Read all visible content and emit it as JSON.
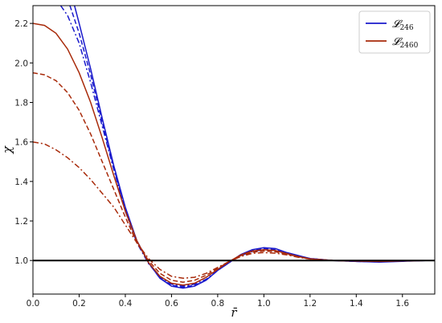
{
  "chart_data": {
    "type": "line",
    "xlabel": "r̄",
    "ylabel": "χ",
    "xlim": [
      0.0,
      1.74
    ],
    "ylim": [
      0.83,
      2.29
    ],
    "x_ticks": [
      "0.0",
      "0.2",
      "0.4",
      "0.6",
      "0.8",
      "1.0",
      "1.2",
      "1.4",
      "1.6"
    ],
    "y_ticks": [
      "1.0",
      "1.2",
      "1.4",
      "1.6",
      "1.8",
      "2.0",
      "2.2"
    ],
    "x_tick_values": [
      0.0,
      0.2,
      0.4,
      0.6,
      0.8,
      1.0,
      1.2,
      1.4,
      1.6
    ],
    "y_tick_values": [
      1.0,
      1.2,
      1.4,
      1.6,
      1.8,
      2.0,
      2.2
    ],
    "grid": false,
    "legend_position": "top-right",
    "legend": [
      {
        "label": "𝓛",
        "sub": "246",
        "color": "#1a1acc"
      },
      {
        "label": "𝓛",
        "sub": "2460",
        "color": "#a82a0a"
      }
    ],
    "reference_line": {
      "y": 1.0,
      "color": "#000000"
    },
    "series": [
      {
        "color": "#1a1acc",
        "dash": "solid",
        "points": [
          [
            0.18,
            2.29
          ],
          [
            0.2,
            2.2
          ],
          [
            0.25,
            1.97
          ],
          [
            0.3,
            1.72
          ],
          [
            0.35,
            1.48
          ],
          [
            0.4,
            1.27
          ],
          [
            0.45,
            1.1
          ],
          [
            0.5,
            0.99
          ],
          [
            0.55,
            0.91
          ],
          [
            0.6,
            0.87
          ],
          [
            0.65,
            0.86
          ],
          [
            0.7,
            0.87
          ],
          [
            0.75,
            0.9
          ],
          [
            0.8,
            0.95
          ],
          [
            0.85,
            0.99
          ],
          [
            0.9,
            1.03
          ],
          [
            0.95,
            1.055
          ],
          [
            1.0,
            1.065
          ],
          [
            1.05,
            1.06
          ],
          [
            1.1,
            1.04
          ],
          [
            1.15,
            1.025
          ],
          [
            1.2,
            1.01
          ],
          [
            1.3,
            1.0
          ],
          [
            1.4,
            0.995
          ],
          [
            1.5,
            0.992
          ],
          [
            1.6,
            0.996
          ],
          [
            1.7,
            1.0
          ]
        ]
      },
      {
        "color": "#1a1acc",
        "dash": "dashed",
        "points": [
          [
            0.16,
            2.29
          ],
          [
            0.2,
            2.15
          ],
          [
            0.25,
            1.94
          ],
          [
            0.3,
            1.7
          ],
          [
            0.35,
            1.47
          ],
          [
            0.4,
            1.26
          ],
          [
            0.45,
            1.1
          ],
          [
            0.5,
            0.99
          ],
          [
            0.55,
            0.91
          ],
          [
            0.6,
            0.875
          ],
          [
            0.65,
            0.865
          ],
          [
            0.7,
            0.875
          ],
          [
            0.75,
            0.9
          ],
          [
            0.8,
            0.95
          ],
          [
            0.85,
            0.99
          ],
          [
            0.9,
            1.03
          ],
          [
            0.95,
            1.05
          ],
          [
            1.0,
            1.06
          ],
          [
            1.05,
            1.055
          ],
          [
            1.1,
            1.038
          ],
          [
            1.15,
            1.022
          ],
          [
            1.2,
            1.01
          ],
          [
            1.3,
            1.0
          ],
          [
            1.4,
            0.995
          ],
          [
            1.5,
            0.993
          ],
          [
            1.6,
            0.997
          ],
          [
            1.7,
            1.0
          ]
        ]
      },
      {
        "color": "#1a1acc",
        "dash": "dashdot",
        "points": [
          [
            0.12,
            2.29
          ],
          [
            0.15,
            2.24
          ],
          [
            0.2,
            2.1
          ],
          [
            0.25,
            1.9
          ],
          [
            0.3,
            1.68
          ],
          [
            0.35,
            1.46
          ],
          [
            0.4,
            1.25
          ],
          [
            0.45,
            1.09
          ],
          [
            0.5,
            0.985
          ],
          [
            0.55,
            0.915
          ],
          [
            0.6,
            0.88
          ],
          [
            0.65,
            0.87
          ],
          [
            0.7,
            0.88
          ],
          [
            0.75,
            0.905
          ],
          [
            0.8,
            0.95
          ],
          [
            0.85,
            0.99
          ],
          [
            0.9,
            1.025
          ],
          [
            0.95,
            1.045
          ],
          [
            1.0,
            1.055
          ],
          [
            1.05,
            1.05
          ],
          [
            1.1,
            1.035
          ],
          [
            1.15,
            1.02
          ],
          [
            1.2,
            1.008
          ],
          [
            1.3,
            1.0
          ],
          [
            1.4,
            0.996
          ],
          [
            1.5,
            0.994
          ],
          [
            1.6,
            0.997
          ],
          [
            1.7,
            1.0
          ]
        ]
      },
      {
        "color": "#a82a0a",
        "dash": "solid",
        "points": [
          [
            0.0,
            2.2
          ],
          [
            0.05,
            2.19
          ],
          [
            0.1,
            2.15
          ],
          [
            0.15,
            2.07
          ],
          [
            0.2,
            1.95
          ],
          [
            0.25,
            1.8
          ],
          [
            0.3,
            1.62
          ],
          [
            0.35,
            1.43
          ],
          [
            0.4,
            1.25
          ],
          [
            0.45,
            1.1
          ],
          [
            0.5,
            0.99
          ],
          [
            0.55,
            0.92
          ],
          [
            0.6,
            0.885
          ],
          [
            0.65,
            0.875
          ],
          [
            0.7,
            0.885
          ],
          [
            0.75,
            0.915
          ],
          [
            0.8,
            0.955
          ],
          [
            0.85,
            0.995
          ],
          [
            0.9,
            1.028
          ],
          [
            0.95,
            1.048
          ],
          [
            1.0,
            1.055
          ],
          [
            1.05,
            1.05
          ],
          [
            1.1,
            1.035
          ],
          [
            1.15,
            1.02
          ],
          [
            1.2,
            1.008
          ],
          [
            1.3,
            1.0
          ],
          [
            1.4,
            0.997
          ],
          [
            1.5,
            0.995
          ],
          [
            1.6,
            0.998
          ],
          [
            1.7,
            1.0
          ]
        ]
      },
      {
        "color": "#a82a0a",
        "dash": "dashed",
        "points": [
          [
            0.0,
            1.95
          ],
          [
            0.05,
            1.94
          ],
          [
            0.1,
            1.91
          ],
          [
            0.15,
            1.85
          ],
          [
            0.2,
            1.76
          ],
          [
            0.25,
            1.64
          ],
          [
            0.3,
            1.5
          ],
          [
            0.35,
            1.36
          ],
          [
            0.4,
            1.22
          ],
          [
            0.45,
            1.09
          ],
          [
            0.5,
            1.0
          ],
          [
            0.55,
            0.935
          ],
          [
            0.6,
            0.9
          ],
          [
            0.65,
            0.89
          ],
          [
            0.7,
            0.9
          ],
          [
            0.75,
            0.925
          ],
          [
            0.8,
            0.96
          ],
          [
            0.85,
            0.995
          ],
          [
            0.9,
            1.025
          ],
          [
            0.95,
            1.042
          ],
          [
            1.0,
            1.048
          ],
          [
            1.05,
            1.044
          ],
          [
            1.1,
            1.032
          ],
          [
            1.15,
            1.018
          ],
          [
            1.2,
            1.008
          ],
          [
            1.3,
            1.0
          ],
          [
            1.4,
            0.997
          ],
          [
            1.5,
            0.996
          ],
          [
            1.6,
            0.998
          ],
          [
            1.7,
            1.0
          ]
        ]
      },
      {
        "color": "#a82a0a",
        "dash": "dashdot",
        "points": [
          [
            0.0,
            1.6
          ],
          [
            0.05,
            1.59
          ],
          [
            0.1,
            1.56
          ],
          [
            0.15,
            1.52
          ],
          [
            0.2,
            1.47
          ],
          [
            0.25,
            1.41
          ],
          [
            0.3,
            1.34
          ],
          [
            0.35,
            1.27
          ],
          [
            0.4,
            1.18
          ],
          [
            0.45,
            1.09
          ],
          [
            0.5,
            1.01
          ],
          [
            0.55,
            0.955
          ],
          [
            0.6,
            0.92
          ],
          [
            0.65,
            0.91
          ],
          [
            0.7,
            0.915
          ],
          [
            0.75,
            0.935
          ],
          [
            0.8,
            0.965
          ],
          [
            0.85,
            0.995
          ],
          [
            0.9,
            1.02
          ],
          [
            0.95,
            1.036
          ],
          [
            1.0,
            1.04
          ],
          [
            1.05,
            1.037
          ],
          [
            1.1,
            1.028
          ],
          [
            1.15,
            1.016
          ],
          [
            1.2,
            1.007
          ],
          [
            1.3,
            1.0
          ],
          [
            1.4,
            0.998
          ],
          [
            1.5,
            0.997
          ],
          [
            1.6,
            0.999
          ],
          [
            1.7,
            1.0
          ]
        ]
      }
    ]
  }
}
